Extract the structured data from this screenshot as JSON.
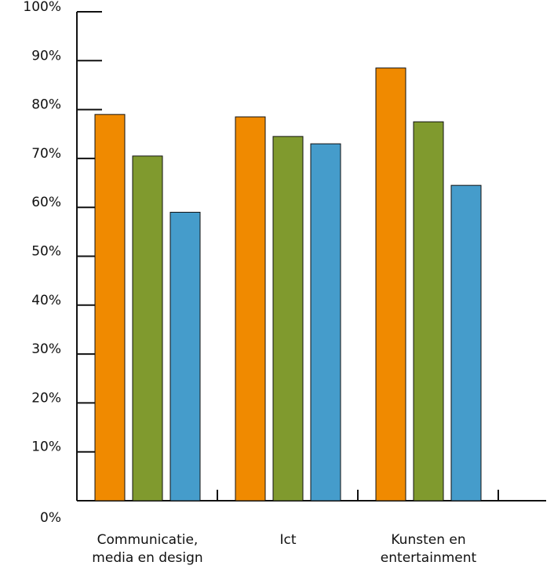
{
  "chart_data": {
    "type": "bar",
    "categories": [
      [
        "Communicatie,",
        "media en design"
      ],
      [
        "Ict"
      ],
      [
        "Kunsten en",
        "entertainment"
      ]
    ],
    "series": [
      {
        "values": [
          79,
          78.5,
          88.5
        ]
      },
      {
        "values": [
          70.5,
          74.5,
          77.5
        ]
      },
      {
        "values": [
          59,
          73,
          64.5
        ]
      }
    ],
    "colors": [
      "#f08a00",
      "#809a2e",
      "#459ccb"
    ],
    "ylim": [
      0,
      100
    ],
    "yticks": [
      "0%",
      "10%",
      "20%",
      "30%",
      "40%",
      "50%",
      "60%",
      "70%",
      "80%",
      "90%",
      "100%"
    ],
    "xlabel": "",
    "ylabel": "",
    "grid": false,
    "legend": "none"
  }
}
